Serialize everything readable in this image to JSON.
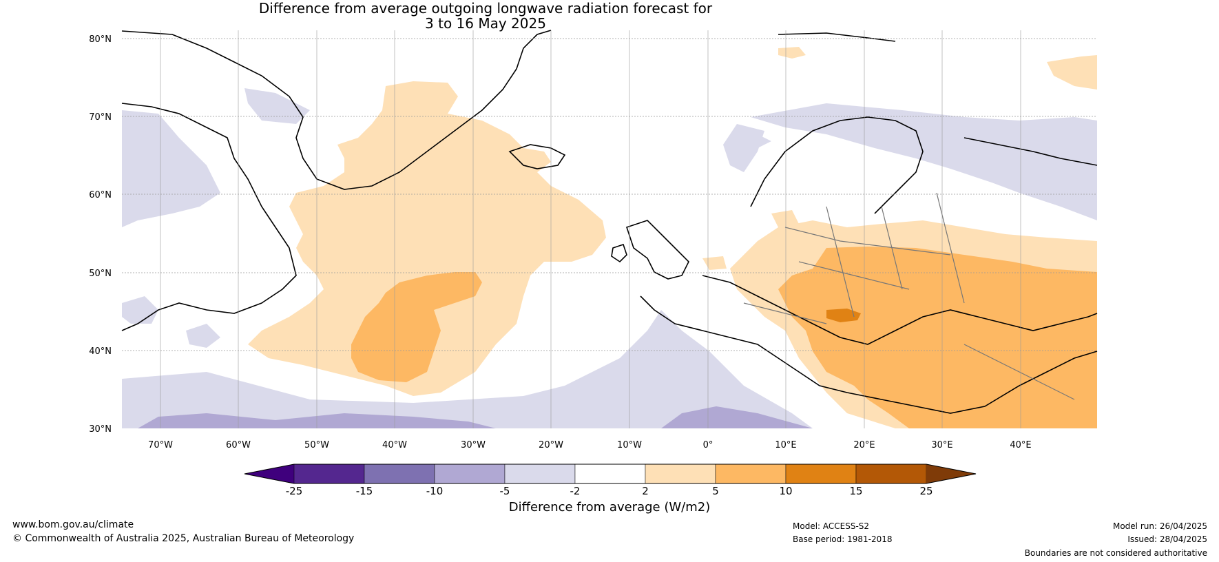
{
  "title": {
    "line1": "Difference from average outgoing longwave radiation forecast for",
    "line2": "3 to 16 May 2025"
  },
  "map": {
    "lat_labels": [
      "80°N",
      "70°N",
      "60°N",
      "50°N",
      "40°N",
      "30°N"
    ],
    "lon_labels": [
      "70°W",
      "60°W",
      "50°W",
      "40°W",
      "30°W",
      "20°W",
      "10°W",
      "0°",
      "10°E",
      "20°E",
      "30°E",
      "40°E"
    ]
  },
  "colorbar": {
    "title": "Difference from average (W/m2)",
    "tick_labels": [
      "-25",
      "-15",
      "-10",
      "-5",
      "-2",
      "2",
      "5",
      "10",
      "15",
      "25"
    ],
    "colors": [
      "#3f007d",
      "#54278f",
      "#7e71b1",
      "#b0a8d3",
      "#dadaeb",
      "#ffffff",
      "#fee0b6",
      "#fdb863",
      "#e08214",
      "#b35806",
      "#7f3b08"
    ]
  },
  "footer": {
    "website": "www.bom.gov.au/climate",
    "copyright": "© Commonwealth of Australia 2025, Australian Bureau of Meteorology",
    "model": "Model: ACCESS-S2",
    "base_period": "Base period: 1981-2018",
    "model_run": "Model run: 26/04/2025",
    "issued": "Issued: 28/04/2025",
    "disclaimer": "Boundaries are not considered authoritative"
  }
}
